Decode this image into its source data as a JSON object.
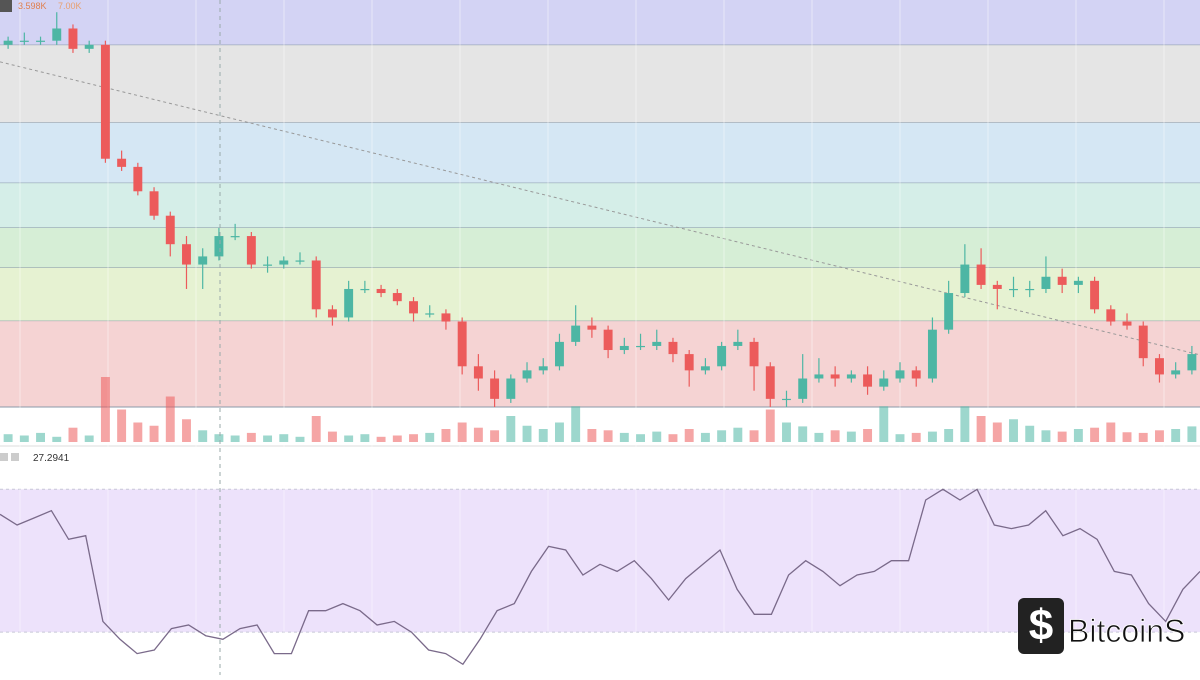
{
  "chart_data": [
    {
      "type": "candlestick",
      "price_label": "3.598K",
      "change_label": "7.00K",
      "ylim": [
        0,
        100
      ],
      "vlim": [
        0,
        100
      ],
      "up_color": "#4db6a4",
      "down_color": "#ec5b5b",
      "fib_levels": [
        {
          "from": 88.9,
          "to": 100,
          "color": "#d3d3f4"
        },
        {
          "from": 69.8,
          "to": 88.9,
          "color": "#e5e5e5"
        },
        {
          "from": 55,
          "to": 69.8,
          "color": "#d5e7f4"
        },
        {
          "from": 44,
          "to": 55,
          "color": "#d5eee8"
        },
        {
          "from": 34.2,
          "to": 44,
          "color": "#d6eed6"
        },
        {
          "from": 21.1,
          "to": 34.2,
          "color": "#e6f2d2"
        },
        {
          "from": 0,
          "to": 21.1,
          "color": "#f5d3d3"
        }
      ],
      "trendline": [
        84.8,
        12.8
      ],
      "candles": [
        [
          89,
          91,
          88,
          90
        ],
        [
          90,
          92,
          89,
          90
        ],
        [
          90,
          91,
          89,
          90
        ],
        [
          90,
          97,
          89,
          93
        ],
        [
          93,
          94,
          87,
          88
        ],
        [
          88,
          90,
          87,
          89
        ],
        [
          89,
          90,
          60,
          61
        ],
        [
          61,
          63,
          58,
          59
        ],
        [
          59,
          60,
          52,
          53
        ],
        [
          53,
          54,
          46,
          47
        ],
        [
          47,
          48,
          37,
          40
        ],
        [
          40,
          42,
          29,
          35
        ],
        [
          35,
          39,
          29,
          37
        ],
        [
          37,
          44,
          36,
          42
        ],
        [
          42,
          45,
          41,
          42
        ],
        [
          42,
          43,
          34,
          35
        ],
        [
          35,
          37,
          33,
          35
        ],
        [
          35,
          37,
          34,
          36
        ],
        [
          36,
          38,
          35,
          36
        ],
        [
          36,
          37,
          22,
          24
        ],
        [
          24,
          25,
          20,
          22
        ],
        [
          22,
          31,
          21,
          29
        ],
        [
          29,
          31,
          28,
          29
        ],
        [
          29,
          30,
          27,
          28
        ],
        [
          28,
          29,
          25,
          26
        ],
        [
          26,
          27,
          21,
          23
        ],
        [
          23,
          25,
          22,
          23
        ],
        [
          23,
          24,
          19,
          21
        ],
        [
          21,
          22,
          8,
          10
        ],
        [
          10,
          13,
          4,
          7
        ],
        [
          7,
          9,
          0,
          2
        ],
        [
          2,
          8,
          1,
          7
        ],
        [
          7,
          11,
          6,
          9
        ],
        [
          9,
          12,
          8,
          10
        ],
        [
          10,
          18,
          9,
          16
        ],
        [
          16,
          25,
          15,
          20
        ],
        [
          20,
          22,
          17,
          19
        ],
        [
          19,
          20,
          12,
          14
        ],
        [
          14,
          17,
          13,
          15
        ],
        [
          15,
          18,
          14,
          15
        ],
        [
          15,
          19,
          14,
          16
        ],
        [
          16,
          17,
          11,
          13
        ],
        [
          13,
          14,
          5,
          9
        ],
        [
          9,
          12,
          8,
          10
        ],
        [
          10,
          16,
          9,
          15
        ],
        [
          15,
          19,
          14,
          16
        ],
        [
          16,
          17,
          4,
          10
        ],
        [
          10,
          11,
          0,
          2
        ],
        [
          2,
          4,
          0,
          2
        ],
        [
          2,
          13,
          1,
          7
        ],
        [
          7,
          12,
          6,
          8
        ],
        [
          8,
          10,
          5,
          7
        ],
        [
          7,
          9,
          6,
          8
        ],
        [
          8,
          10,
          3,
          5
        ],
        [
          5,
          9,
          4,
          7
        ],
        [
          7,
          11,
          6,
          9
        ],
        [
          9,
          10,
          5,
          7
        ],
        [
          7,
          22,
          6,
          19
        ],
        [
          19,
          31,
          18,
          28
        ],
        [
          28,
          40,
          27,
          35
        ],
        [
          35,
          39,
          29,
          30
        ],
        [
          30,
          31,
          24,
          29
        ],
        [
          29,
          32,
          27,
          29
        ],
        [
          29,
          31,
          27,
          29
        ],
        [
          29,
          37,
          28,
          32
        ],
        [
          32,
          34,
          28,
          30
        ],
        [
          30,
          32,
          28,
          31
        ],
        [
          31,
          32,
          23,
          24
        ],
        [
          24,
          25,
          20,
          21
        ],
        [
          21,
          23,
          19,
          20
        ],
        [
          20,
          21,
          10,
          12
        ],
        [
          12,
          13,
          6,
          8
        ],
        [
          8,
          11,
          7,
          9
        ],
        [
          9,
          15,
          8,
          13
        ]
      ],
      "volumes": [
        12,
        10,
        14,
        8,
        22,
        10,
        100,
        50,
        30,
        25,
        70,
        35,
        18,
        12,
        10,
        14,
        10,
        12,
        8,
        40,
        16,
        10,
        12,
        8,
        10,
        12,
        14,
        20,
        30,
        22,
        18,
        40,
        25,
        20,
        30,
        55,
        20,
        18,
        14,
        12,
        16,
        12,
        20,
        14,
        18,
        22,
        18,
        50,
        30,
        24,
        14,
        18,
        16,
        20,
        55,
        12,
        14,
        16,
        20,
        55,
        40,
        30,
        35,
        25,
        18,
        16,
        20,
        22,
        30,
        15,
        14,
        18,
        20,
        24
      ]
    },
    {
      "type": "line",
      "label": "27.2941",
      "color": "#7a6a8a",
      "ylim": [
        18,
        81
      ],
      "band": [
        30,
        70
      ],
      "band_color": "#ede2fb",
      "values": [
        63,
        60,
        62,
        64,
        56,
        57,
        33,
        28,
        24,
        25,
        31,
        32,
        29,
        28,
        31,
        32,
        24,
        24,
        36,
        36,
        38,
        36,
        32,
        33,
        30,
        25,
        24,
        21,
        28,
        36,
        38,
        47,
        54,
        53,
        46,
        49,
        47,
        50,
        45,
        39,
        45,
        49,
        53,
        42,
        35,
        35,
        46,
        50,
        47,
        43,
        46,
        47,
        50,
        50,
        67,
        70,
        67,
        70,
        60,
        59,
        60,
        64,
        57,
        59,
        56,
        47,
        46,
        38,
        33,
        42,
        47
      ]
    }
  ],
  "watermark": "BitcoinS"
}
